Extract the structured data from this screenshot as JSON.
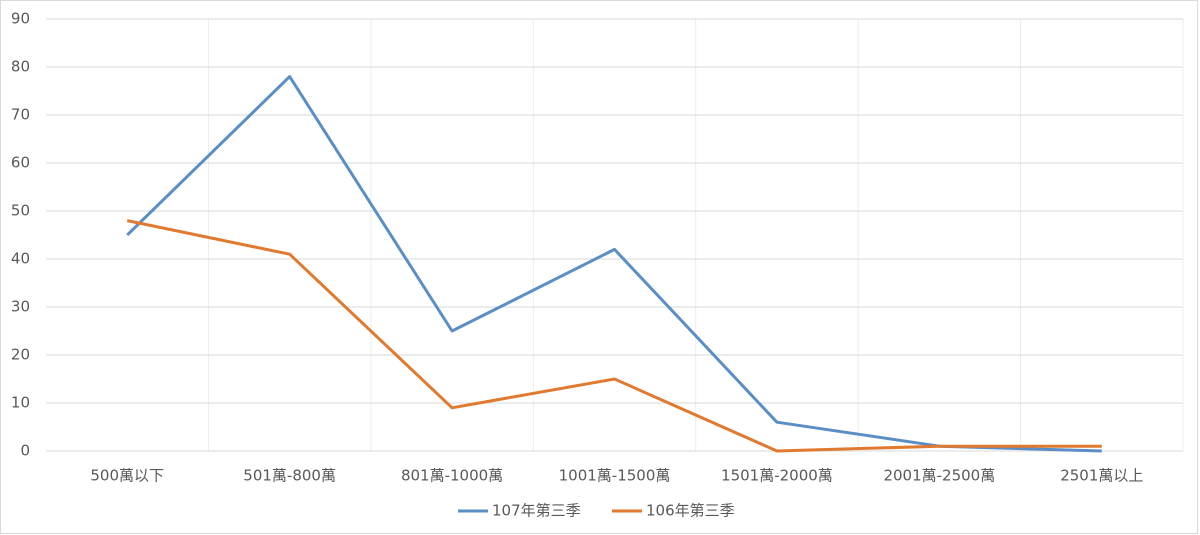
{
  "chart_data": {
    "type": "line",
    "categories": [
      "500萬以下",
      "501萬-800萬",
      "801萬-1000萬",
      "1001萬-1500萬",
      "1501萬-2000萬",
      "2001萬-2500萬",
      "2501萬以上"
    ],
    "series": [
      {
        "name": "107年第三季",
        "color": "#5b8ec4",
        "values": [
          45,
          78,
          25,
          42,
          6,
          1,
          0
        ]
      },
      {
        "name": "106年第三季",
        "color": "#e07a30",
        "values": [
          48,
          41,
          9,
          15,
          0,
          1,
          1
        ]
      }
    ],
    "ylim": [
      0,
      90
    ],
    "yticks": [
      0,
      10,
      20,
      30,
      40,
      50,
      60,
      70,
      80,
      90
    ],
    "grid": true,
    "legend": "bottom"
  }
}
